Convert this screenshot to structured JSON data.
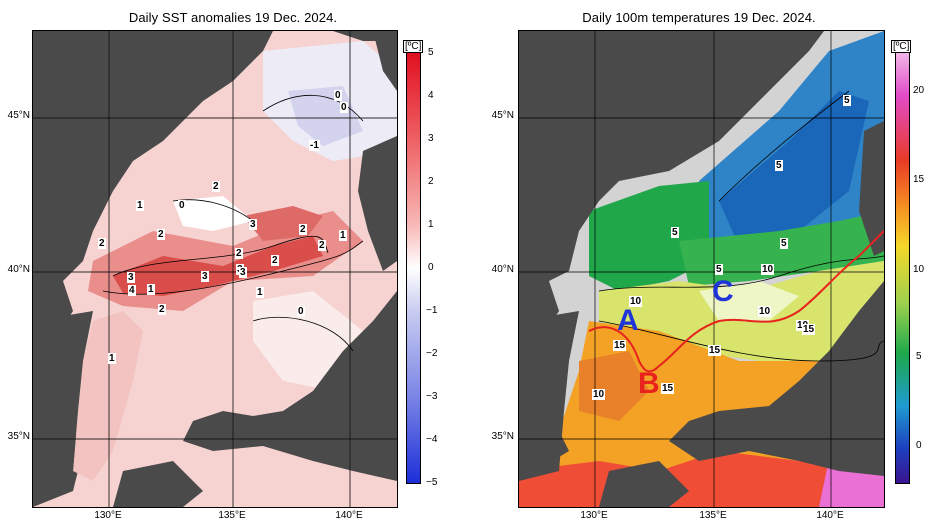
{
  "left_panel": {
    "title": "Daily SST anomalies 19 Dec. 2024.",
    "unit": "[ºC]",
    "colorbar_ticks": [
      "5",
      "4",
      "3",
      "2",
      "1",
      "0",
      "−1",
      "−2",
      "−3",
      "−4",
      "−5"
    ],
    "contour_labels": [
      "0",
      "0",
      "-1",
      "2",
      "1",
      "0",
      "2",
      "3",
      "2",
      "1",
      "2",
      "2",
      "2",
      "3",
      "2",
      "3",
      "3",
      "4",
      "1",
      "3",
      "1",
      "2",
      "0",
      "1"
    ]
  },
  "right_panel": {
    "title": "Daily 100m temperatures 19 Dec. 2024.",
    "unit": "[ºC]",
    "colorbar_ticks": [
      "20",
      "15",
      "10",
      "5",
      "0"
    ],
    "contour_labels": [
      "5",
      "5",
      "5",
      "5",
      "5",
      "10",
      "10",
      "10",
      "10",
      "15",
      "15",
      "15",
      "10",
      "15"
    ],
    "markers": {
      "a": "A",
      "b": "B",
      "c": "C"
    },
    "marker_colors": {
      "a": "#1f35d8",
      "b": "#e8231e",
      "c": "#1f35d8"
    }
  },
  "axes": {
    "lat_labels": [
      "45°N",
      "40°N",
      "35°N"
    ],
    "lon_labels": [
      "130°E",
      "135°E",
      "140°E"
    ]
  },
  "colors": {
    "land": "#4a4a4a",
    "no_data": "#d3d3d3",
    "warm_max": "#e8102a",
    "cold_max": "#2233dd",
    "front_line": "#e8231e"
  }
}
